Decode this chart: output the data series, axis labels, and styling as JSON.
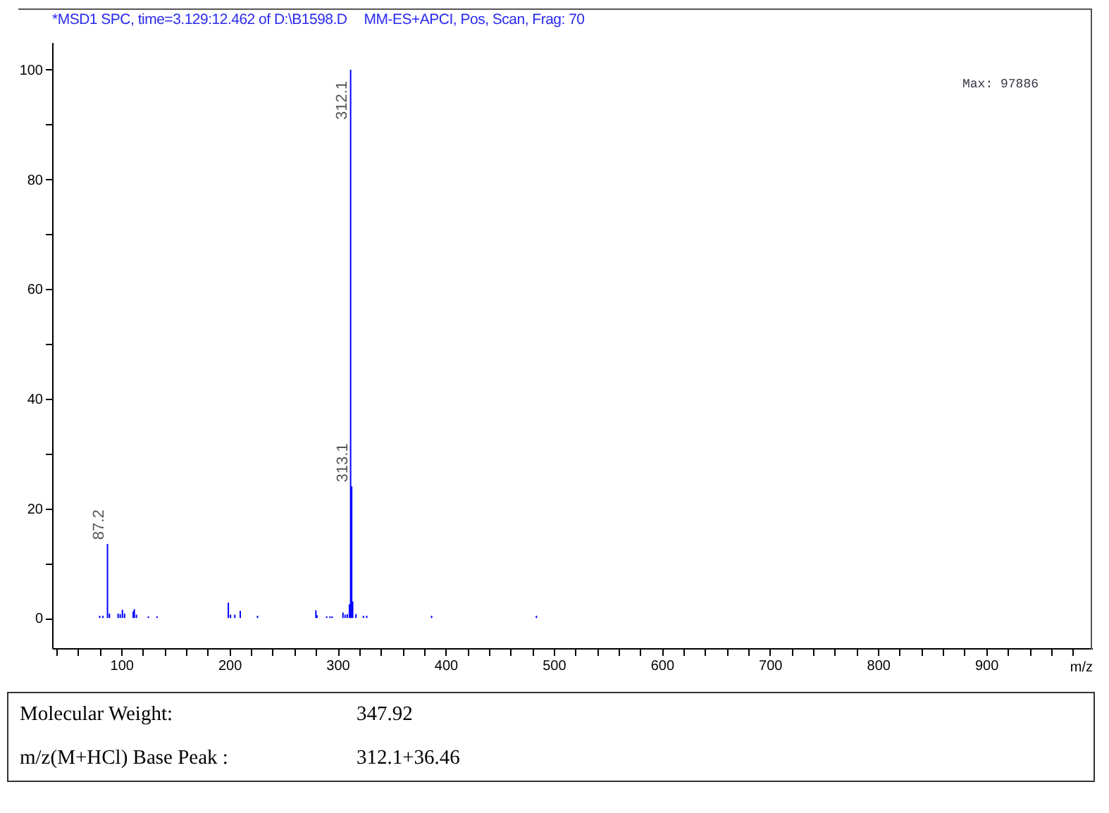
{
  "chart_data": {
    "type": "bar",
    "title": "*MSD1 SPC, time=3.129:12.462 of D:\\B1598.D",
    "subtitle": "MM-ES+APCI, Pos, Scan, Frag: 70",
    "xlabel": "m/z",
    "x": [
      80,
      83,
      87.2,
      89,
      97,
      99,
      101,
      103,
      111,
      112,
      114,
      125,
      133,
      199,
      201,
      205,
      210,
      226,
      280,
      281,
      290,
      293,
      295,
      305,
      307,
      309,
      311,
      312.1,
      313.1,
      314,
      317,
      324,
      327,
      387,
      484
    ],
    "values": [
      0.4,
      0.4,
      13.5,
      0.8,
      0.8,
      0.7,
      1.5,
      0.8,
      1.2,
      1.6,
      0.6,
      0.3,
      0.3,
      2.8,
      0.6,
      0.6,
      1.3,
      0.4,
      1.4,
      0.5,
      0.3,
      0.3,
      0.3,
      1.0,
      0.6,
      0.7,
      2.5,
      100,
      24,
      3.0,
      0.7,
      0.4,
      0.4,
      0.4,
      0.4
    ],
    "color": "#0000ff",
    "xlim": [
      36,
      998
    ],
    "xticks": [
      {
        "value": 40,
        "label": null
      },
      {
        "value": 60,
        "label": null
      },
      {
        "value": 80,
        "label": null
      },
      100,
      {
        "value": 120,
        "label": null
      },
      {
        "value": 140,
        "label": null
      },
      {
        "value": 160,
        "label": null
      },
      {
        "value": 180,
        "label": null
      },
      200,
      {
        "value": 220,
        "label": null
      },
      {
        "value": 240,
        "label": null
      },
      {
        "value": 260,
        "label": null
      },
      {
        "value": 280,
        "label": null
      },
      300,
      {
        "value": 320,
        "label": null
      },
      {
        "value": 340,
        "label": null
      },
      {
        "value": 360,
        "label": null
      },
      {
        "value": 380,
        "label": null
      },
      400,
      {
        "value": 420,
        "label": null
      },
      {
        "value": 440,
        "label": null
      },
      {
        "value": 460,
        "label": null
      },
      {
        "value": 480,
        "label": null
      },
      500,
      {
        "value": 520,
        "label": null
      },
      {
        "value": 540,
        "label": null
      },
      {
        "value": 560,
        "label": null
      },
      {
        "value": 580,
        "label": null
      },
      600,
      {
        "value": 620,
        "label": null
      },
      {
        "value": 640,
        "label": null
      },
      {
        "value": 660,
        "label": null
      },
      {
        "value": 680,
        "label": null
      },
      700,
      {
        "value": 720,
        "label": null
      },
      {
        "value": 740,
        "label": null
      },
      {
        "value": 760,
        "label": null
      },
      {
        "value": 780,
        "label": null
      },
      800,
      {
        "value": 820,
        "label": null
      },
      {
        "value": 840,
        "label": null
      },
      {
        "value": 860,
        "label": null
      },
      {
        "value": 880,
        "label": null
      },
      900,
      {
        "value": 920,
        "label": null
      },
      {
        "value": 940,
        "label": null
      },
      {
        "value": 960,
        "label": null
      },
      {
        "value": 980,
        "label": null
      }
    ],
    "ylim": [
      -5.5,
      105
    ],
    "yticks": [
      0,
      {
        "value": 10,
        "label": null
      },
      20,
      {
        "value": 30,
        "label": null
      },
      40,
      {
        "value": 50,
        "label": null
      },
      60,
      {
        "value": 70,
        "label": null
      },
      80,
      {
        "value": 90,
        "label": null
      },
      100
    ],
    "annotations": [
      "Max: 97886",
      {
        "text": "312.1",
        "x": 312.1,
        "y": 100
      },
      {
        "text": "313.1",
        "x": 313.1,
        "y": 24
      },
      {
        "text": "87.2",
        "x": 87.2,
        "y": 13.5
      },
      "Molecular Weight:",
      "347.92",
      "m/z(M+HCl) Base Peak :",
      "312.1+36.46"
    ]
  }
}
